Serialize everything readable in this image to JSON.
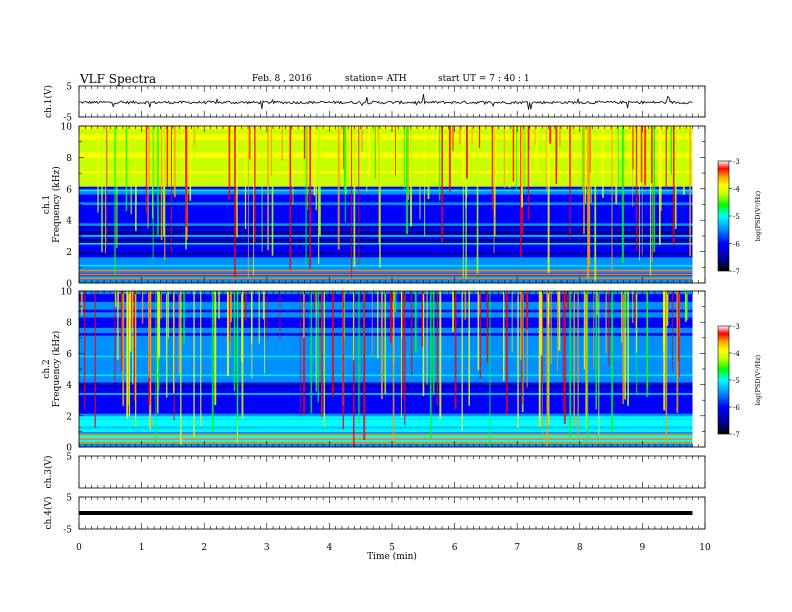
{
  "header": {
    "title": "VLF  Spectra",
    "date": "Feb. 8  , 2016",
    "station": "station= ATH",
    "start": "start  UT  =   7  : 40 : 1"
  },
  "chart_data": [
    {
      "type": "line",
      "panel": "ch1-waveform",
      "ylabel": "ch.1(V)",
      "ylim": [
        -5,
        5
      ],
      "y_ticks": [
        "5",
        "-5"
      ],
      "x_range_min": [
        0,
        9.8
      ],
      "series_description": "noisy signal around -0.3 V with sparse spikes"
    },
    {
      "type": "heatmap",
      "panel": "ch1-spectrogram",
      "ylabel": "ch.1\nFrequency  (kHz)",
      "ylim": [
        0,
        10
      ],
      "y_ticks": [
        "0",
        "2",
        "4",
        "6",
        "8",
        "10"
      ],
      "colorbar": {
        "label": "log(PSD(V²/Hz)",
        "range": [
          -7,
          -3
        ],
        "ticks": [
          "-3",
          "-4",
          "-5",
          "-6",
          "-7"
        ]
      }
    },
    {
      "type": "heatmap",
      "panel": "ch2-spectrogram",
      "ylabel": "ch.2\nFrequency  (kHz)",
      "ylim": [
        0,
        10
      ],
      "y_ticks": [
        "0",
        "2",
        "4",
        "6",
        "8",
        "10"
      ],
      "colorbar": {
        "label": "log(PSD(V²/Hz)",
        "range": [
          -7,
          -3
        ],
        "ticks": [
          "-3",
          "-4",
          "-5",
          "-6",
          "-7"
        ]
      }
    },
    {
      "type": "line",
      "panel": "ch3-waveform",
      "ylabel": "ch.3(V)",
      "ylim": [
        -5,
        5
      ],
      "y_ticks": [
        "5"
      ],
      "series_description": "no signal"
    },
    {
      "type": "line",
      "panel": "ch4-waveform",
      "ylabel": "ch.4(V)",
      "ylim": [
        -5,
        5
      ],
      "y_ticks": [
        "5",
        "-5"
      ],
      "series_description": "constant thick trace at about 0 V"
    }
  ],
  "x_axis": {
    "label": "Time  (min)",
    "range": [
      0,
      10
    ],
    "ticks": [
      "0",
      "1",
      "2",
      "3",
      "4",
      "5",
      "6",
      "7",
      "8",
      "9",
      "10"
    ]
  },
  "colors": {
    "colorscale": [
      "#000000",
      "#0000a0",
      "#0000ff",
      "#0090ff",
      "#00ffff",
      "#00ff00",
      "#c8ff00",
      "#ffff00",
      "#ffa000",
      "#ff0000",
      "#ffffff"
    ]
  }
}
